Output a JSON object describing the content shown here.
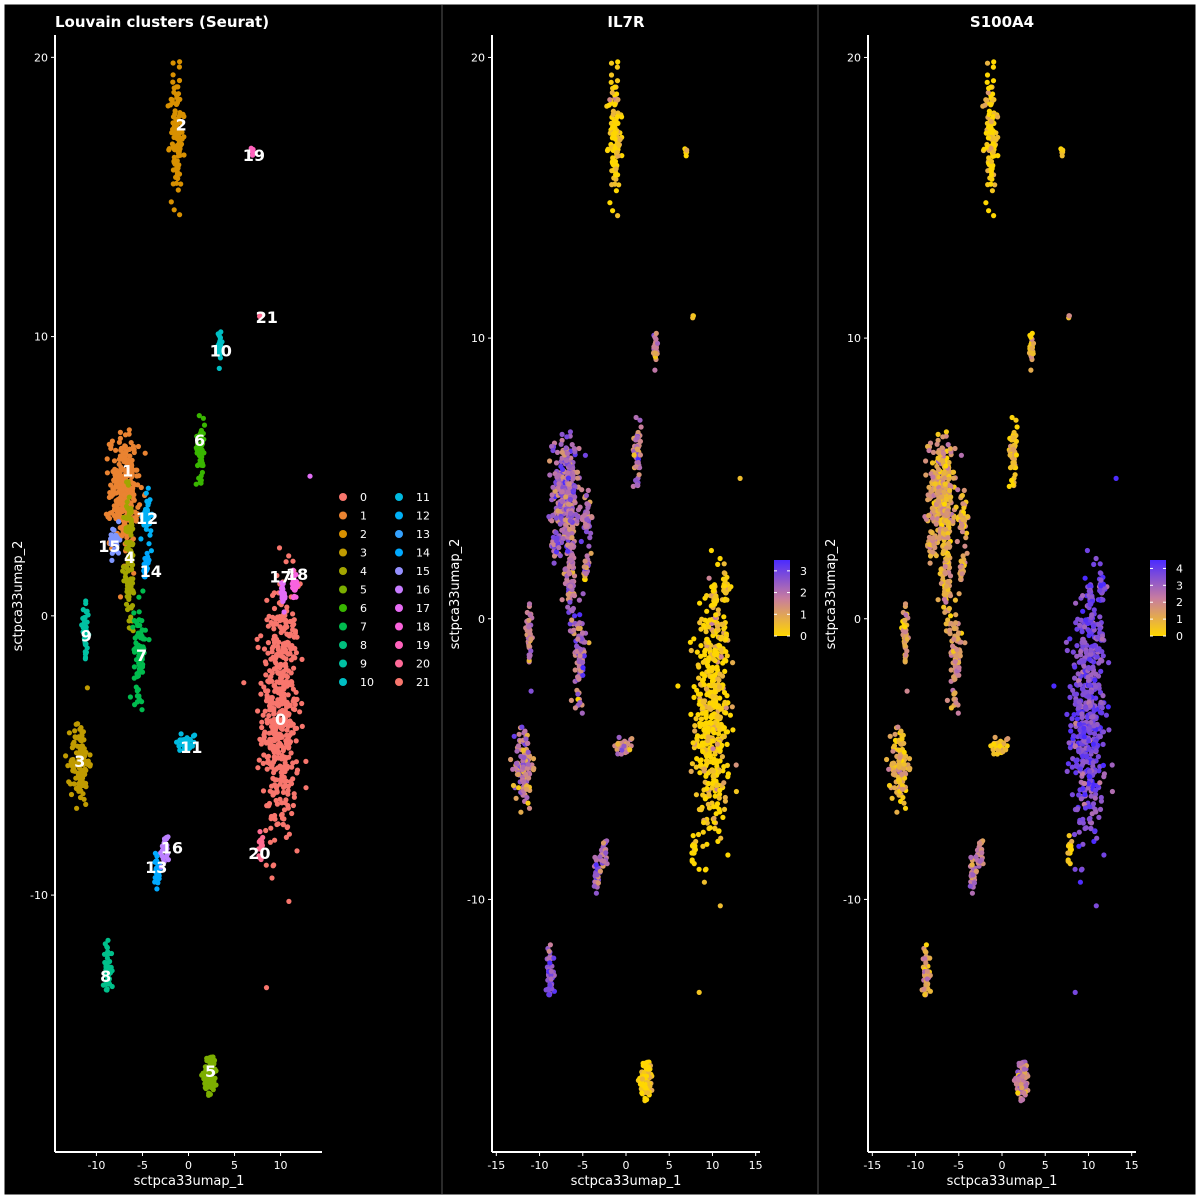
{
  "figure": {
    "background": "#000000",
    "border": "#ffffff",
    "divider": "#555555"
  },
  "chart_data": [
    {
      "type": "scatter",
      "title": "Louvain clusters (Seurat)",
      "xlabel": "sctpca33umap_1",
      "ylabel": "sctpca33umap_2",
      "xlim": [
        -14.5,
        14.5
      ],
      "ylim": [
        -19.2,
        20.8
      ],
      "x_ticks": [
        -10,
        -5,
        0,
        5,
        10
      ],
      "x_tick_labels": [
        "-10",
        "-5",
        "0",
        "5",
        "10"
      ],
      "y_ticks": [
        -10,
        0,
        10,
        20
      ],
      "y_tick_labels": [
        "-10",
        "0",
        "10",
        "20"
      ],
      "legend_position": "right",
      "legend": [
        {
          "label": "0",
          "color": "#F8766D"
        },
        {
          "label": "1",
          "color": "#EA8331"
        },
        {
          "label": "2",
          "color": "#D89000"
        },
        {
          "label": "3",
          "color": "#C09B00"
        },
        {
          "label": "4",
          "color": "#A3A500"
        },
        {
          "label": "5",
          "color": "#7CAE00"
        },
        {
          "label": "6",
          "color": "#39B600"
        },
        {
          "label": "7",
          "color": "#00BB4E"
        },
        {
          "label": "8",
          "color": "#00BF7D"
        },
        {
          "label": "9",
          "color": "#00C1A3"
        },
        {
          "label": "10",
          "color": "#00BFC4"
        },
        {
          "label": "11",
          "color": "#00BAE0"
        },
        {
          "label": "12",
          "color": "#00B0F6"
        },
        {
          "label": "13",
          "color": "#35A2FF"
        },
        {
          "label": "14",
          "color": "#00A9FF"
        },
        {
          "label": "15",
          "color": "#9590FF"
        },
        {
          "label": "16",
          "color": "#C77CFF"
        },
        {
          "label": "17",
          "color": "#E76BF3"
        },
        {
          "label": "18",
          "color": "#FA62DB"
        },
        {
          "label": "19",
          "color": "#FF62BC"
        },
        {
          "label": "20",
          "color": "#FF6A98"
        },
        {
          "label": "21",
          "color": "#F8766D"
        }
      ],
      "clusters": [
        {
          "id": "0",
          "label": "0",
          "color": "#F8766D",
          "center": [
            10.0,
            -3.5
          ],
          "spread": [
            2.2,
            5.2
          ],
          "points": 500,
          "label_pos": [
            10.0,
            -3.7
          ]
        },
        {
          "id": "1",
          "label": "1",
          "color": "#EA8331",
          "center": [
            -7.0,
            4.5
          ],
          "spread": [
            1.7,
            2.2
          ],
          "points": 260,
          "label_pos": [
            -6.6,
            5.2
          ]
        },
        {
          "id": "2",
          "label": "2",
          "color": "#D89000",
          "center": [
            -1.3,
            17.2
          ],
          "spread": [
            0.8,
            2.4
          ],
          "points": 110,
          "label_pos": [
            -0.8,
            17.6
          ]
        },
        {
          "id": "3",
          "label": "3",
          "color": "#C09B00",
          "center": [
            -11.8,
            -5.2
          ],
          "spread": [
            1.1,
            1.7
          ],
          "points": 110,
          "label_pos": [
            -11.8,
            -5.2
          ]
        },
        {
          "id": "4",
          "label": "4",
          "color": "#A3A500",
          "center": [
            -6.4,
            2.0
          ],
          "spread": [
            0.6,
            3.0
          ],
          "points": 110,
          "label_pos": [
            -6.4,
            2.1
          ]
        },
        {
          "id": "5",
          "label": "5",
          "color": "#7CAE00",
          "center": [
            2.4,
            -16.4
          ],
          "spread": [
            0.8,
            0.8
          ],
          "points": 80,
          "label_pos": [
            2.4,
            -16.3
          ]
        },
        {
          "id": "6",
          "label": "6",
          "color": "#39B600",
          "center": [
            1.3,
            6.0
          ],
          "spread": [
            0.5,
            1.2
          ],
          "points": 60,
          "label_pos": [
            1.2,
            6.3
          ]
        },
        {
          "id": "7",
          "label": "7",
          "color": "#00BB4E",
          "center": [
            -5.3,
            -1.2
          ],
          "spread": [
            0.7,
            1.8
          ],
          "points": 80,
          "label_pos": [
            -5.1,
            -1.4
          ]
        },
        {
          "id": "8",
          "label": "8",
          "color": "#00C08B",
          "center": [
            -8.8,
            -12.7
          ],
          "spread": [
            0.5,
            1.0
          ],
          "points": 50,
          "label_pos": [
            -9.0,
            -12.9
          ]
        },
        {
          "id": "9",
          "label": "9",
          "color": "#00C1A3",
          "center": [
            -11.2,
            -0.6
          ],
          "spread": [
            0.4,
            1.0
          ],
          "points": 40,
          "label_pos": [
            -11.1,
            -0.7
          ]
        },
        {
          "id": "10",
          "label": "10",
          "color": "#00BFC4",
          "center": [
            3.4,
            9.6
          ],
          "spread": [
            0.3,
            0.7
          ],
          "points": 30,
          "label_pos": [
            3.5,
            9.5
          ]
        },
        {
          "id": "11",
          "label": "11",
          "color": "#00BAE0",
          "center": [
            -0.2,
            -4.5
          ],
          "spread": [
            1.2,
            0.4
          ],
          "points": 35,
          "label_pos": [
            0.3,
            -4.7
          ]
        },
        {
          "id": "12",
          "label": "12",
          "color": "#00B0F6",
          "center": [
            -4.5,
            3.5
          ],
          "spread": [
            0.5,
            0.9
          ],
          "points": 45,
          "label_pos": [
            -4.5,
            3.5
          ]
        },
        {
          "id": "13",
          "label": "13",
          "color": "#00A9FF",
          "center": [
            -3.4,
            -9.0
          ],
          "spread": [
            0.3,
            0.8
          ],
          "points": 30,
          "label_pos": [
            -3.5,
            -9.0
          ]
        },
        {
          "id": "14",
          "label": "14",
          "color": "#00A6FF",
          "center": [
            -4.6,
            1.7
          ],
          "spread": [
            0.4,
            0.5
          ],
          "points": 25,
          "label_pos": [
            -4.1,
            1.6
          ]
        },
        {
          "id": "15",
          "label": "15",
          "color": "#7F96FF",
          "center": [
            -8.0,
            2.7
          ],
          "spread": [
            0.6,
            0.6
          ],
          "points": 35,
          "label_pos": [
            -8.6,
            2.5
          ]
        },
        {
          "id": "16",
          "label": "16",
          "color": "#BC81FF",
          "center": [
            -2.6,
            -8.4
          ],
          "spread": [
            0.5,
            0.6
          ],
          "points": 25,
          "label_pos": [
            -1.8,
            -8.3
          ]
        },
        {
          "id": "17",
          "label": "17",
          "color": "#E26EF7",
          "center": [
            10.3,
            0.8
          ],
          "spread": [
            0.3,
            0.6
          ],
          "points": 20,
          "label_pos": [
            10.0,
            1.4
          ]
        },
        {
          "id": "18",
          "label": "18",
          "color": "#F863DF",
          "center": [
            11.5,
            1.1
          ],
          "spread": [
            0.3,
            0.5
          ],
          "points": 20,
          "label_pos": [
            11.8,
            1.5
          ]
        },
        {
          "id": "19",
          "label": "19",
          "color": "#FF62BC",
          "center": [
            6.9,
            16.6
          ],
          "spread": [
            0.2,
            0.2
          ],
          "points": 6,
          "label_pos": [
            7.1,
            16.5
          ]
        },
        {
          "id": "20",
          "label": "20",
          "color": "#FF6C91",
          "center": [
            7.8,
            -8.2
          ],
          "spread": [
            0.3,
            0.6
          ],
          "points": 15,
          "label_pos": [
            7.7,
            -8.5
          ]
        },
        {
          "id": "21",
          "label": "21",
          "color": "#FF6C91",
          "center": [
            7.8,
            10.8
          ],
          "spread": [
            0.1,
            0.1
          ],
          "points": 3,
          "label_pos": [
            8.5,
            10.7
          ]
        }
      ],
      "extra_points": [
        [
          13.2,
          5.0
        ]
      ]
    },
    {
      "type": "scatter",
      "title": "IL7R",
      "xlabel": "sctpca33umap_1",
      "ylabel": "sctpca33umap_2",
      "xlim": [
        -15.5,
        15.5
      ],
      "ylim": [
        -19.0,
        20.8
      ],
      "x_ticks": [
        -15,
        -10,
        -5,
        0,
        5,
        10,
        15
      ],
      "x_tick_labels": [
        "-15",
        "-10",
        "-5",
        "0",
        "5",
        "10",
        "15"
      ],
      "y_ticks": [
        -10,
        0,
        10,
        20
      ],
      "y_tick_labels": [
        "-10",
        "0",
        "10",
        "20"
      ],
      "colorbar": {
        "min": 0,
        "max": 3.5,
        "ticks": [
          0,
          1,
          2,
          3
        ],
        "tick_labels": [
          "0",
          "1",
          "2",
          "3"
        ],
        "low_color": "#FFD700",
        "mid_color": "#C77CA0",
        "high_color": "#4B2BFF"
      },
      "cluster_expression": {
        "0": 0.05,
        "1": 2.2,
        "2": 0.05,
        "3": 1.8,
        "4": 2.0,
        "5": 0.1,
        "6": 1.8,
        "7": 2.0,
        "8": 2.4,
        "9": 1.7,
        "10": 1.6,
        "11": 1.4,
        "12": 2.0,
        "13": 2.6,
        "14": 1.8,
        "15": 2.3,
        "16": 2.0,
        "17": 0.1,
        "18": 0.1,
        "19": 0.2,
        "20": 0.1,
        "21": 0.1
      }
    },
    {
      "type": "scatter",
      "title": "S100A4",
      "xlabel": "sctpca33umap_1",
      "ylabel": "sctpca33umap_2",
      "xlim": [
        -15.5,
        15.5
      ],
      "ylim": [
        -19.0,
        20.8
      ],
      "x_ticks": [
        -15,
        -10,
        -5,
        0,
        5,
        10,
        15
      ],
      "x_tick_labels": [
        "-15",
        "-10",
        "-5",
        "0",
        "5",
        "10",
        "15"
      ],
      "y_ticks": [
        -10,
        0,
        10,
        20
      ],
      "y_tick_labels": [
        "-10",
        "0",
        "10",
        "20"
      ],
      "colorbar": {
        "min": 0,
        "max": 4.5,
        "ticks": [
          0,
          1,
          2,
          3,
          4
        ],
        "tick_labels": [
          "0",
          "1",
          "2",
          "3",
          "4"
        ],
        "low_color": "#FFD700",
        "mid_color": "#C77CA0",
        "high_color": "#4B2BFF"
      },
      "cluster_expression": {
        "0": 3.6,
        "1": 1.3,
        "2": 0.1,
        "3": 0.9,
        "4": 1.2,
        "5": 2.2,
        "6": 0.5,
        "7": 1.6,
        "8": 1.2,
        "9": 1.3,
        "10": 0.8,
        "11": 0.6,
        "12": 1.2,
        "13": 2.4,
        "14": 1.3,
        "15": 1.3,
        "16": 2.0,
        "17": 3.8,
        "18": 3.8,
        "19": 0.5,
        "20": 0.3,
        "21": 1.5
      }
    }
  ]
}
